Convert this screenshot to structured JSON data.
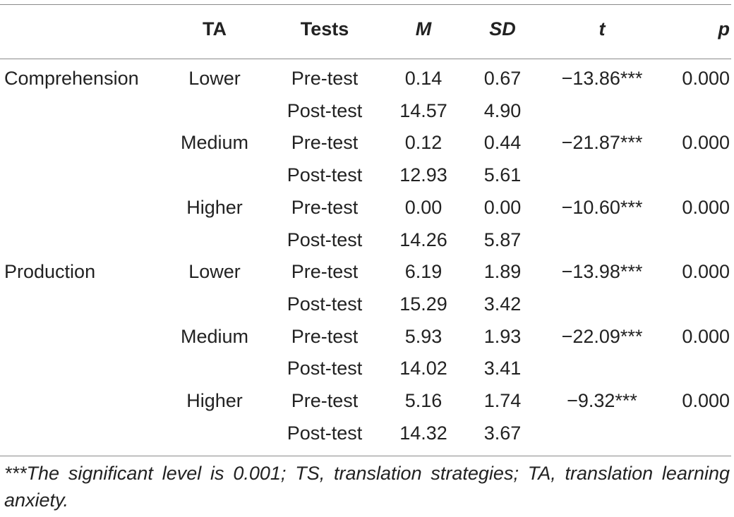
{
  "table": {
    "headers": {
      "measure": "",
      "ta": "TA",
      "tests": "Tests",
      "m": "M",
      "sd": "SD",
      "t": "t",
      "p": "p"
    },
    "rows": [
      {
        "measure": "Comprehension",
        "ta": "Lower",
        "test": "Pre-test",
        "m": "0.14",
        "sd": "0.67",
        "t": "−13.86***",
        "p": "0.000"
      },
      {
        "measure": "",
        "ta": "",
        "test": "Post-test",
        "m": "14.57",
        "sd": "4.90",
        "t": "",
        "p": ""
      },
      {
        "measure": "",
        "ta": "Medium",
        "test": "Pre-test",
        "m": "0.12",
        "sd": "0.44",
        "t": "−21.87***",
        "p": "0.000"
      },
      {
        "measure": "",
        "ta": "",
        "test": "Post-test",
        "m": "12.93",
        "sd": "5.61",
        "t": "",
        "p": ""
      },
      {
        "measure": "",
        "ta": "Higher",
        "test": "Pre-test",
        "m": "0.00",
        "sd": "0.00",
        "t": "−10.60***",
        "p": "0.000"
      },
      {
        "measure": "",
        "ta": "",
        "test": "Post-test",
        "m": "14.26",
        "sd": "5.87",
        "t": "",
        "p": ""
      },
      {
        "measure": "Production",
        "ta": "Lower",
        "test": "Pre-test",
        "m": "6.19",
        "sd": "1.89",
        "t": "−13.98***",
        "p": "0.000"
      },
      {
        "measure": "",
        "ta": "",
        "test": "Post-test",
        "m": "15.29",
        "sd": "3.42",
        "t": "",
        "p": ""
      },
      {
        "measure": "",
        "ta": "Medium",
        "test": "Pre-test",
        "m": "5.93",
        "sd": "1.93",
        "t": "−22.09***",
        "p": "0.000"
      },
      {
        "measure": "",
        "ta": "",
        "test": "Post-test",
        "m": "14.02",
        "sd": "3.41",
        "t": "",
        "p": ""
      },
      {
        "measure": "",
        "ta": "Higher",
        "test": "Pre-test",
        "m": "5.16",
        "sd": "1.74",
        "t": "−9.32***",
        "p": "0.000"
      },
      {
        "measure": "",
        "ta": "",
        "test": "Post-test",
        "m": "14.32",
        "sd": "3.67",
        "t": "",
        "p": ""
      }
    ],
    "footnote": "***The significant level is 0.001; TS, translation strategies; TA, translation learning anxiety."
  }
}
